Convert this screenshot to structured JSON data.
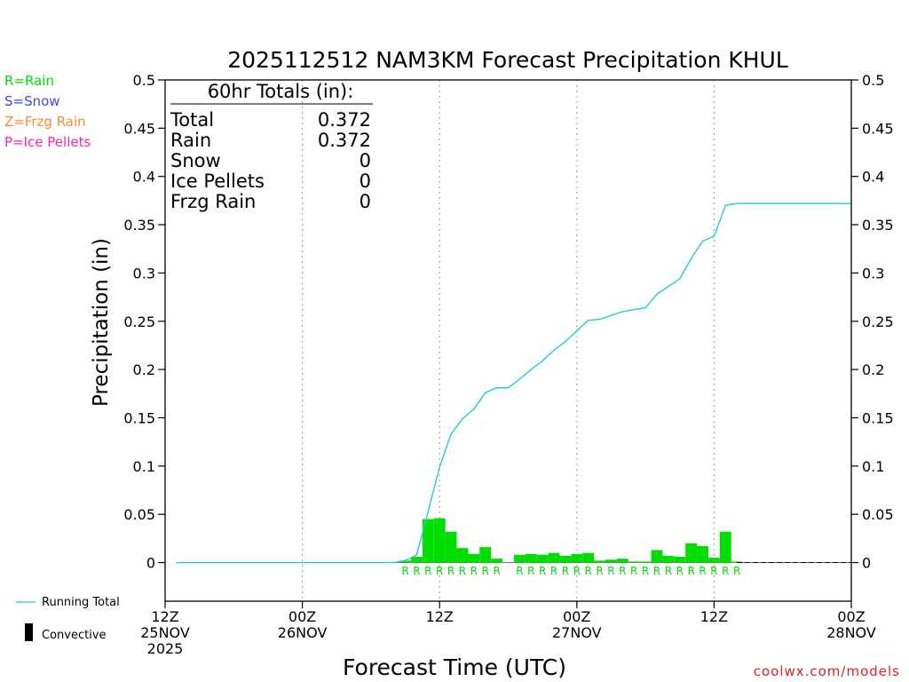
{
  "colors": {
    "rain": "#00dd00",
    "snow": "#4444ff",
    "frzg": "#ff8833",
    "ice": "#ff22aa",
    "running_total": "#22cccc",
    "convective": "#000000",
    "footer": "#dd2222"
  },
  "legend": {
    "precip_types": [
      {
        "label": "R=Rain",
        "color_key": "rain"
      },
      {
        "label": "S=Snow",
        "color_key": "snow"
      },
      {
        "label": "Z=Frzg Rain",
        "color_key": "frzg"
      },
      {
        "label": "P=Ice Pellets",
        "color_key": "ice"
      }
    ],
    "running_total_label": "Running Total",
    "convective_label": "Convective"
  },
  "totals": {
    "header": "60hr Totals (in):",
    "rows": [
      {
        "label": "Total",
        "value": "0.372"
      },
      {
        "label": "Rain",
        "value": "0.372"
      },
      {
        "label": "Snow",
        "value": "0"
      },
      {
        "label": "Ice Pellets",
        "value": "0"
      },
      {
        "label": "Frzg Rain",
        "value": "0"
      }
    ]
  },
  "footer": {
    "source": "coolwx.com/models"
  },
  "chart_data": {
    "type": "bar",
    "title": "2025112512 NAM3KM Forecast Precipitation KHUL",
    "xlabel": "Forecast Time (UTC)",
    "ylabel": "Precipitation (in)",
    "ylim": [
      -0.04,
      0.5
    ],
    "xlim_hours": [
      0,
      60
    ],
    "yticks": [
      0,
      0.05,
      0.1,
      0.15,
      0.2,
      0.25,
      0.3,
      0.35,
      0.4,
      0.45,
      0.5
    ],
    "ytick_labels": [
      "0",
      "0.05",
      "0.1",
      "0.15",
      "0.2",
      "0.25",
      "0.3",
      "0.35",
      "0.4",
      "0.45",
      "0.5"
    ],
    "xticks": [
      {
        "hour": 0,
        "lines": [
          "12Z",
          "25NOV",
          "2025"
        ]
      },
      {
        "hour": 12,
        "lines": [
          "00Z",
          "26NOV"
        ]
      },
      {
        "hour": 24,
        "lines": [
          "12Z"
        ]
      },
      {
        "hour": 36,
        "lines": [
          "00Z",
          "27NOV"
        ]
      },
      {
        "hour": 48,
        "lines": [
          "12Z"
        ]
      },
      {
        "hour": 60,
        "lines": [
          "00Z",
          "28NOV"
        ]
      }
    ],
    "bar_hours": [
      21,
      22,
      23,
      24,
      25,
      26,
      27,
      28,
      29,
      31,
      32,
      33,
      34,
      35,
      36,
      37,
      38,
      39,
      40,
      41,
      42,
      43,
      44,
      45,
      46,
      47,
      48,
      49,
      50
    ],
    "bar_values": [
      0.002,
      0.006,
      0.045,
      0.046,
      0.032,
      0.015,
      0.009,
      0.016,
      0.004,
      0.008,
      0.009,
      0.008,
      0.01,
      0.007,
      0.009,
      0.01,
      0.002,
      0.003,
      0.004,
      0.001,
      0.001,
      0.013,
      0.007,
      0.006,
      0.02,
      0.017,
      0.005,
      0.032,
      0.001
    ],
    "bar_types": [
      "R",
      "R",
      "R",
      "R",
      "R",
      "R",
      "R",
      "R",
      "R",
      "R",
      "R",
      "R",
      "R",
      "R",
      "R",
      "R",
      "R",
      "R",
      "R",
      "R",
      "R",
      "R",
      "R",
      "R",
      "R",
      "R",
      "R",
      "R",
      "R"
    ],
    "running_total": {
      "hours": [
        1,
        20,
        21,
        22,
        23,
        24,
        25,
        26,
        27,
        28,
        29,
        30,
        31,
        32,
        33,
        34,
        35,
        36,
        37,
        38,
        39,
        40,
        41,
        42,
        43,
        44,
        45,
        46,
        47,
        48,
        49,
        50,
        60
      ],
      "values": [
        0,
        0,
        0.002,
        0.008,
        0.053,
        0.099,
        0.133,
        0.149,
        0.159,
        0.176,
        0.181,
        0.181,
        0.19,
        0.2,
        0.209,
        0.22,
        0.229,
        0.24,
        0.251,
        0.252,
        0.256,
        0.26,
        0.262,
        0.264,
        0.278,
        0.286,
        0.294,
        0.315,
        0.333,
        0.338,
        0.37,
        0.372,
        0.372
      ]
    },
    "zero_line": {
      "hours": [
        50,
        60
      ],
      "value": 0
    }
  }
}
